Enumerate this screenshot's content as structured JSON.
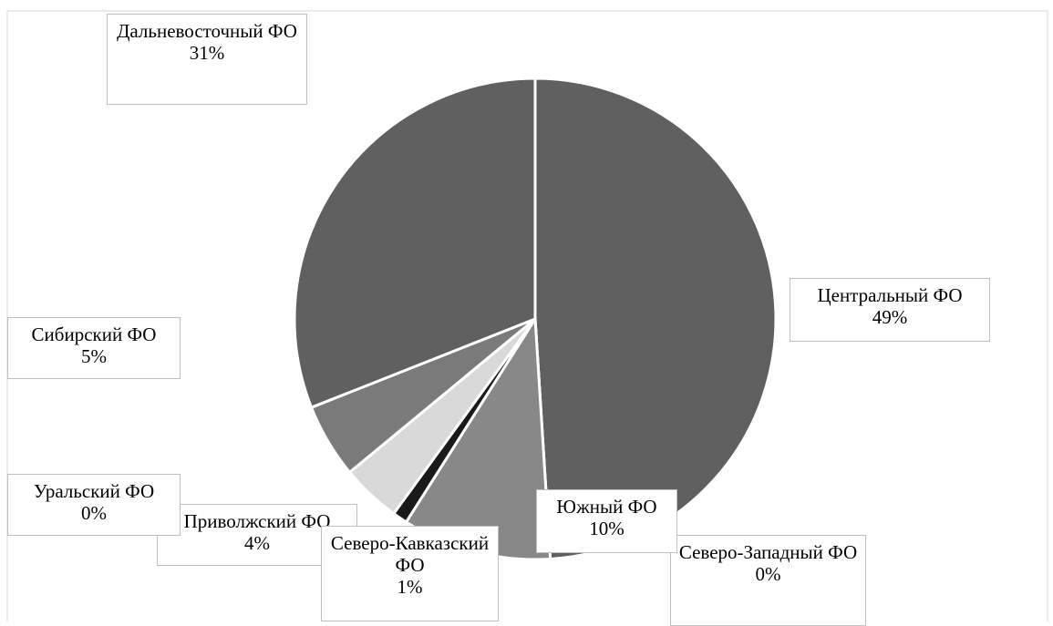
{
  "chart_data": {
    "type": "pie",
    "categories": [
      "Центральный ФО",
      "Северо-Западный ФО",
      "Южный ФО",
      "Северо-Кавказский ФО",
      "Приволжский ФО",
      "Уральский ФО",
      "Сибирский ФО",
      "Дальневосточный ФО"
    ],
    "values": [
      49,
      0,
      10,
      1,
      4,
      0,
      5,
      31
    ],
    "value_labels": [
      "49%",
      "0%",
      "10%",
      "1%",
      "4%",
      "0%",
      "5%",
      "31%"
    ],
    "colors": [
      "#606060",
      "#ffffff",
      "#888888",
      "#1a1a1a",
      "#d9d9d9",
      "#bfbfbf",
      "#7a7a7a",
      "#606060"
    ]
  }
}
